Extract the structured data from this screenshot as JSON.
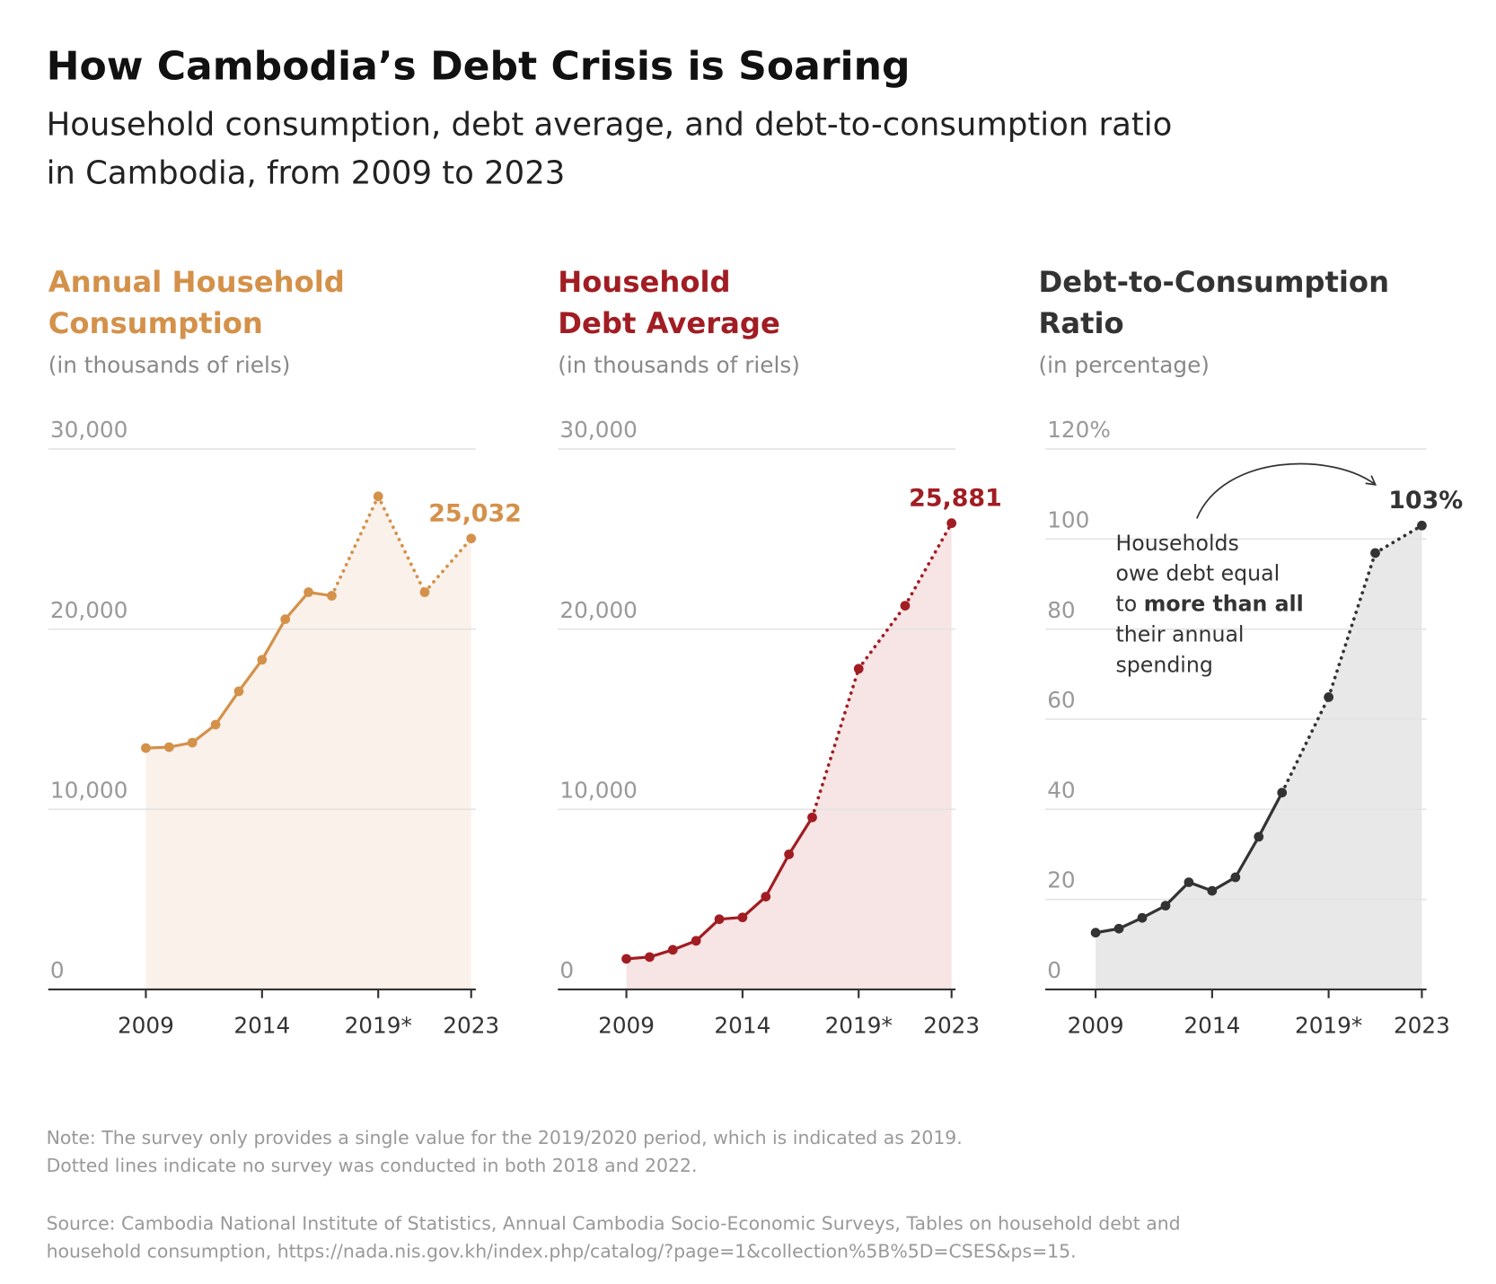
{
  "title": "How Cambodia’s Debt Crisis is Soaring",
  "subtitle": [
    "Household consumption, debt average, and debt-to-consumption ratio",
    "in Cambodia, from 2009 to 2023"
  ],
  "notes": [
    "Note: The survey only provides a single value for the 2019/2020 period, which is indicated as 2019.",
    "Dotted lines indicate no survey was conducted in both 2018 and 2022."
  ],
  "source": [
    "Source: Cambodia National Institute of Statistics, Annual Cambodia Socio-Economic Surveys, Tables on household debt and",
    "household consumption, https://nada.nis.gov.kh/index.php/catalog/?page=1&collection%5B%5D=CSES&ps=15."
  ],
  "chart_data": [
    {
      "type": "line",
      "title": [
        "Annual Household",
        "Consumption"
      ],
      "unit": "(in thousands of riels)",
      "color": "#d4914a",
      "fill": "#faf1ea",
      "x": [
        2009,
        2010,
        2011,
        2012,
        2013,
        2014,
        2015,
        2016,
        2017,
        2019,
        2021,
        2023
      ],
      "values": [
        13400,
        13450,
        13700,
        14700,
        16550,
        18300,
        20550,
        22050,
        21850,
        27370,
        22050,
        25032
      ],
      "value_labels": [
        null,
        null,
        null,
        null,
        null,
        null,
        null,
        null,
        null,
        null,
        null,
        "25,032"
      ],
      "xlim": [
        2004.8,
        2023.2
      ],
      "xticks": [
        2009,
        2014,
        {
          "value": 2019,
          "label": "2019*"
        },
        2023
      ],
      "ylim": [
        0,
        30000
      ],
      "yticks": [
        0,
        {
          "value": 10000,
          "label": "10,000"
        },
        {
          "value": 20000,
          "label": "20,000"
        },
        {
          "value": 30000,
          "label": "30,000"
        }
      ],
      "grid": true
    },
    {
      "type": "line",
      "title": [
        "Household",
        "Debt Average"
      ],
      "unit": "(in thousands of riels)",
      "color": "#a11d23",
      "fill": "#f7e4e4",
      "x": [
        2009,
        2010,
        2011,
        2012,
        2013,
        2014,
        2015,
        2016,
        2017,
        2019,
        2021,
        2023
      ],
      "values": [
        1700,
        1800,
        2200,
        2700,
        3900,
        4000,
        5150,
        7500,
        9550,
        17800,
        21300,
        25881
      ],
      "value_labels": [
        null,
        null,
        null,
        null,
        null,
        null,
        null,
        null,
        null,
        null,
        null,
        "25,881"
      ],
      "xlim": [
        2006.05,
        2023.17
      ],
      "xticks": [
        2009,
        2014,
        {
          "value": 2019,
          "label": "2019*"
        },
        2023
      ],
      "ylim": [
        0,
        30000
      ],
      "yticks": [
        0,
        {
          "value": 10000,
          "label": "10,000"
        },
        {
          "value": 20000,
          "label": "20,000"
        },
        {
          "value": 30000,
          "label": "30,000"
        }
      ],
      "grid": true
    },
    {
      "type": "line",
      "title": [
        "Debt-to-Consumption",
        "Ratio"
      ],
      "unit": "(in percentage)",
      "color": "#333333",
      "fill": "#e8e8e8",
      "x": [
        2009,
        2010,
        2011,
        2012,
        2013,
        2014,
        2015,
        2016,
        2017,
        2019,
        2021,
        2023
      ],
      "values": [
        12.6,
        13.5,
        15.9,
        18.6,
        23.8,
        21.9,
        24.9,
        33.9,
        43.7,
        64.9,
        96.9,
        103
      ],
      "value_labels": [
        null,
        null,
        null,
        null,
        null,
        null,
        null,
        null,
        null,
        null,
        null,
        "103%"
      ],
      "xlim": [
        2006.84,
        2023.2
      ],
      "xticks": [
        2009,
        2014,
        {
          "value": 2019,
          "label": "2019*"
        },
        2023
      ],
      "ylim": [
        0,
        120
      ],
      "yticks": [
        0,
        20,
        40,
        60,
        80,
        100,
        {
          "value": 120,
          "label": "120%"
        }
      ],
      "grid": true,
      "annotation": {
        "lines": [
          [
            "Households"
          ],
          [
            "owe debt equal"
          ],
          [
            "to",
            "more than all"
          ],
          [
            "their annual"
          ],
          [
            "spending"
          ]
        ],
        "bold": [
          [
            false
          ],
          [
            false
          ],
          [
            false,
            true
          ],
          [
            false
          ],
          [
            false
          ]
        ]
      }
    }
  ]
}
